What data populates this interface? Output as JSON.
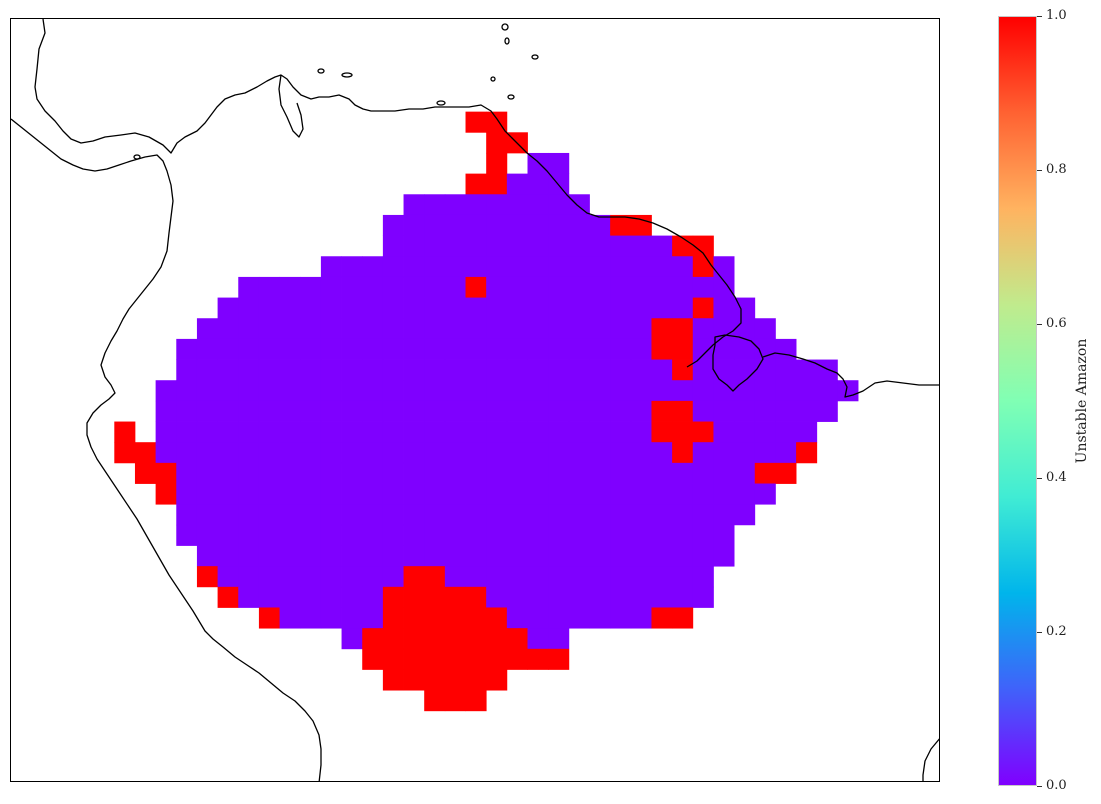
{
  "chart_data": {
    "type": "heatmap",
    "title": "",
    "colorbar": {
      "label": "Unstable Amazon",
      "min": 0.0,
      "max": 1.0,
      "ticks": [
        "0.0",
        "0.2",
        "0.4",
        "0.6",
        "0.8",
        "1.0"
      ],
      "colormap": "rainbow",
      "gradient_colors": [
        "#8000ff",
        "#4062fa",
        "#00b5eb",
        "#40ecd4",
        "#80ffb4",
        "#c0eb8d",
        "#ffb360",
        "#ff6232",
        "#ff0000"
      ]
    },
    "map": {
      "projection": "plate carree",
      "features": [
        "coastlines"
      ]
    },
    "value_colors": {
      "0": "#7f00ff",
      "1": "#ff0000"
    },
    "grid_rows": [
      "0,0,0,0,0,0,0,0,0,0,0,0,0,0,0,0,0,0,0,0,0,0,0,0,0,0,0,0,0,0,0,0,0,0,0,0,0,0,0,0,0,0,0,0,0,0,0,0,0,0",
      "0,0,0,0,0,0,0,0,0,0,0,0,0,0,0,0,0,0,0,0,0,0,0,0,0,0,0,0,0,0,0,0,0,0,0,0,0,0,0,0,0,0,0,0,0,0,0,0,0,0",
      "0,0,0,0,0,0,0,0,0,0,0,0,0,0,0,0,0,0,0,0,0,0,0,0,0,0,0,0,0,0,0,0,0,0,0,0,0,0,0,0,0,0,0,0,0,0,0,0,0,0",
      "0,0,0,0,0,0,0,0,0,0,0,0,0,0,0,0,0,0,0,0,0,0,0,0,0,0,0,0,0,0,0,0,0,0,0,0,0,0,0,0,0,0,0,0,0,0,0,0,0,0",
      "0,0,0,0,0,0,0,0,0,0,0,0,0,0,0,0,0,0,0,0,0,0,2,2,0,0,0,0,0,0,0,0,0,0,0,0,0,0,0,0,0,0,0,0,0,0,0,0,0,0",
      "0,0,0,0,0,0,0,0,0,0,0,0,0,0,0,0,0,0,0,0,0,0,0,2,2,0,0,0,0,0,0,0,0,0,0,0,0,0,0,0,0,0,0,0,0,0,0,0,0,0",
      "0,0,0,0,0,0,0,0,0,0,0,0,0,0,0,0,0,0,0,0,0,0,0,2,0,1,1,0,0,0,0,0,0,0,0,0,0,0,0,0,0,0,0,0,0,0,0,0,0,0",
      "0,0,0,0,0,0,0,0,0,0,0,0,0,0,0,0,0,0,0,0,0,0,2,2,1,1,1,0,0,0,0,0,0,0,0,0,0,0,0,0,0,0,0,0,0,0,0,0,0,0",
      "0,0,0,0,0,0,0,0,0,0,0,0,0,0,0,0,0,0,0,1,1,1,1,1,1,1,1,1,0,0,0,0,0,0,0,0,0,0,0,0,0,0,0,0,0,0,0,0,0,0",
      "0,0,0,0,0,0,0,0,0,0,0,0,0,0,0,0,0,0,1,1,1,1,1,1,1,1,1,1,1,2,2,0,0,0,0,0,0,0,0,0,0,0,0,0,0,0,0,0,0,0",
      "0,0,0,0,0,0,0,0,0,0,0,0,0,0,0,0,0,0,1,1,1,1,1,1,1,1,1,1,1,1,1,1,2,2,0,0,0,0,0,0,0,0,0,0,0,0,0,0,0,0",
      "0,0,0,0,0,0,0,0,0,0,0,0,0,0,0,1,1,1,1,1,1,1,1,1,1,1,1,1,1,1,1,1,1,2,1,0,0,0,0,0,0,0,0,0,0,0,0,0,0,0",
      "0,0,0,0,0,0,0,0,0,0,0,1,1,1,1,1,1,1,1,1,1,1,2,1,1,1,1,1,1,1,1,1,1,1,1,0,0,0,0,0,0,0,0,0,0,0,0,0,0,0",
      "0,0,0,0,0,0,0,0,0,0,1,1,1,1,1,1,1,1,1,1,1,1,1,1,1,1,1,1,1,1,1,1,1,2,1,1,0,0,0,0,0,0,0,0,0,0,0,0,0,0",
      "0,0,0,0,0,0,0,0,0,1,1,1,1,1,1,1,1,1,1,1,1,1,1,1,1,1,1,1,1,1,1,2,2,1,1,1,1,0,0,0,0,0,0,0,0,0,0,0,0,0",
      "0,0,0,0,0,0,0,0,1,1,1,1,1,1,1,1,1,1,1,1,1,1,1,1,1,1,1,1,1,1,1,2,2,1,1,1,1,1,0,0,0,0,0,0,0,0,0,0,0,0",
      "0,0,0,0,0,0,0,0,1,1,1,1,1,1,1,1,1,1,1,1,1,1,1,1,1,1,1,1,1,1,1,1,2,1,1,1,1,1,1,1,0,0,0,0,0,0,0,0,0,0",
      "0,0,0,0,0,0,0,1,1,1,1,1,1,1,1,1,1,1,1,1,1,1,1,1,1,1,1,1,1,1,1,1,1,1,1,1,1,1,1,1,1,0,0,0,0,0,0,0,0,0",
      "0,0,0,0,0,0,0,1,1,1,1,1,1,1,1,1,1,1,1,1,1,1,1,1,1,1,1,1,1,1,1,2,2,1,1,1,1,1,1,1,0,0,0,0,0,0,0,0,0,0",
      "0,0,0,0,0,2,0,1,1,1,1,1,1,1,1,1,1,1,1,1,1,1,1,1,1,1,1,1,1,1,1,2,2,2,1,1,1,1,1,0,0,0,0,0,0,0,0,0,0,0",
      "0,0,0,0,0,2,2,1,1,1,1,1,1,1,1,1,1,1,1,1,1,1,1,1,1,1,1,1,1,1,1,1,2,1,1,1,1,1,2,0,0,0,0,0,0,0,0,0,0,0",
      "0,0,0,0,0,0,2,2,1,1,1,1,1,1,1,1,1,1,1,1,1,1,1,1,1,1,1,1,1,1,1,1,1,1,1,1,2,2,0,0,0,0,0,0,0,0,0,0,0,0",
      "0,0,0,0,0,0,0,2,1,1,1,1,1,1,1,1,1,1,1,1,1,1,1,1,1,1,1,1,1,1,1,1,1,1,1,1,1,0,0,0,0,0,0,0,0,0,0,0,0,0",
      "0,0,0,0,0,0,0,0,1,1,1,1,1,1,1,1,1,1,1,1,1,1,1,1,1,1,1,1,1,1,1,1,1,1,1,1,0,0,0,0,0,0,0,0,0,0,0,0,0,0",
      "0,0,0,0,0,0,0,0,1,1,1,1,1,1,1,1,1,1,1,1,1,1,1,1,1,1,1,1,1,1,1,1,1,1,1,0,0,0,0,0,0,0,0,0,0,0,0,0,0,0",
      "0,0,0,0,0,0,0,0,0,1,1,1,1,1,1,1,1,1,1,1,1,1,1,1,1,1,1,1,1,1,1,1,1,1,1,0,0,0,0,0,0,0,0,0,0,0,0,0,0,0",
      "0,0,0,0,0,0,0,0,0,2,1,1,1,1,1,1,1,1,1,2,2,1,1,1,1,1,1,1,1,1,1,1,1,1,0,0,0,0,0,0,0,0,0,0,0,0,0,0,0,0",
      "0,0,0,0,0,0,0,0,0,0,2,1,1,1,1,1,1,1,2,2,2,2,2,1,1,1,1,1,1,1,1,1,1,1,0,0,0,0,0,0,0,0,0,0,0,0,0,0,0,0",
      "0,0,0,0,0,0,0,0,0,0,0,0,2,1,1,1,1,1,2,2,2,2,2,2,1,1,1,1,1,1,1,2,2,0,0,0,0,0,0,0,0,0,0,0,0,0,0,0,0,0",
      "0,0,0,0,0,0,0,0,0,0,0,0,0,0,0,0,1,2,2,2,2,2,2,2,2,1,1,0,0,0,0,0,0,0,0,0,0,0,0,0,0,0,0,0,0,0,0,0,0,0",
      "0,0,0,0,0,0,0,0,0,0,0,0,0,0,0,0,0,2,2,2,2,2,2,2,2,2,2,0,0,0,0,0,0,0,0,0,0,0,0,0,0,0,0,0,0,0,0,0,0,0",
      "0,0,0,0,0,0,0,0,0,0,0,0,0,0,0,0,0,0,2,2,2,2,2,2,0,0,0,0,0,0,0,0,0,0,0,0,0,0,0,0,0,0,0,0,0,0,0,0,0,0",
      "0,0,0,0,0,0,0,0,0,0,0,0,0,0,0,0,0,0,0,0,2,2,2,0,0,0,0,0,0,0,0,0,0,0,0,0,0,0,0,0,0,0,0,0,0,0,0,0,0,0",
      "0,0,0,0,0,0,0,0,0,0,0,0,0,0,0,0,0,0,0,0,0,0,0,0,0,0,0,0,0,0,0,0,0,0,0,0,0,0,0,0,0,0,0,0,0,0,0,0,0,0",
      "0,0,0,0,0,0,0,0,0,0,0,0,0,0,0,0,0,0,0,0,0,0,0,0,0,0,0,0,0,0,0,0,0,0,0,0,0,0,0,0,0,0,0,0,0,0,0,0,0,0",
      "0,0,0,0,0,0,0,0,0,0,0,0,0,0,0,0,0,0,0,0,0,0,0,0,0,0,0,0,0,0,0,0,0,0,0,0,0,0,0,0,0,0,0,0,0,0,0,0,0,0",
      "0,0,0,0,0,0,0,0,0,0,0,0,0,0,0,0,0,0,0,0,0,0,0,0,0,0,0,0,0,0,0,0,0,0,0,0,0,0,0,0,0,0,0,0,0,0,0,0,0,0",
      "0,0,0,0,0,0,0,0,0,0,0,0,0,0,0,0,0,0,0,0,0,0,0,0,0,0,0,0,0,0,0,0,0,0,0,0,0,0,0,0,0,0,0,0,0,0,0,0,0,0"
    ],
    "grid_legend": "0 = no data (white), 1 = value 0.0 (stable), 2 = value 1.0 (unstable)"
  }
}
